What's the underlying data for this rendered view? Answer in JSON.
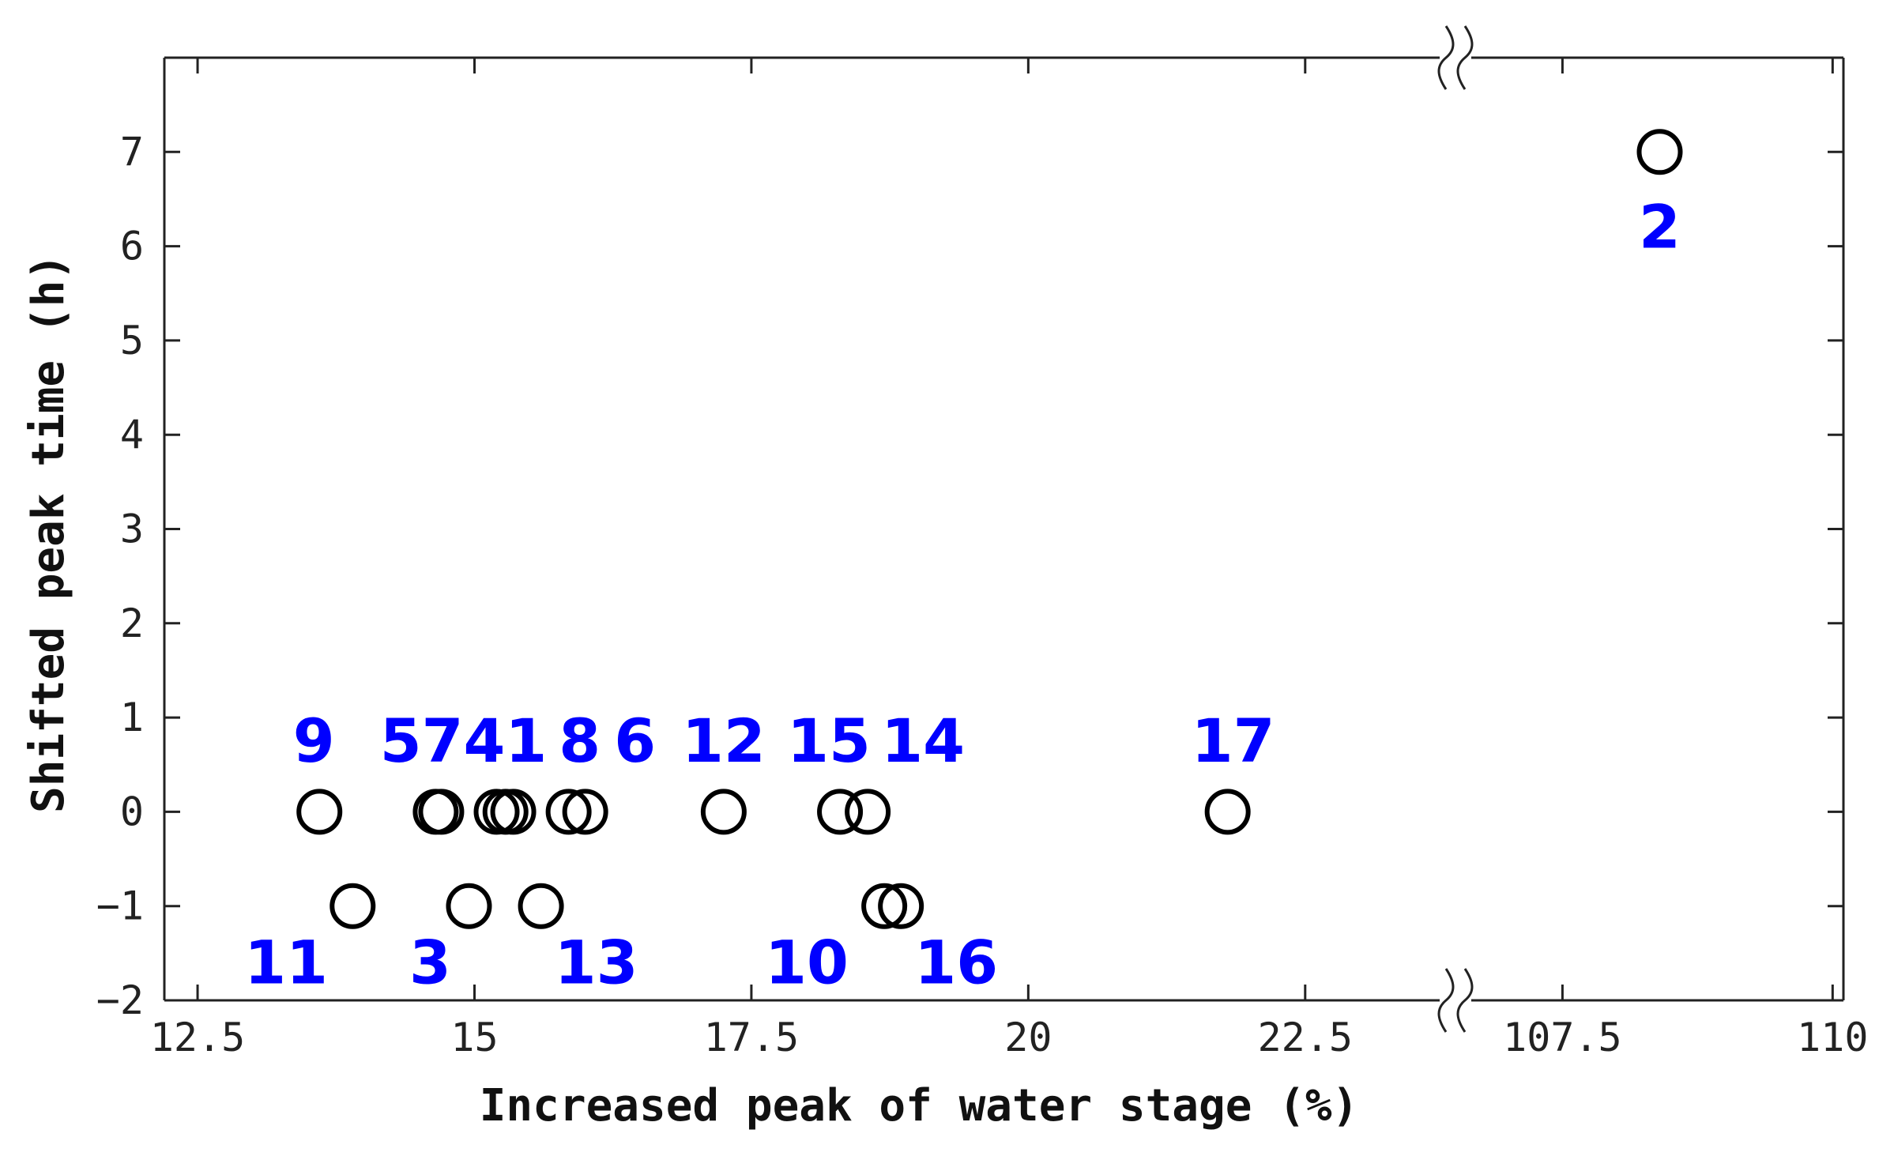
{
  "chart_data": {
    "type": "scatter",
    "title": "",
    "xlabel": "Increased peak of water stage (%)",
    "ylabel": "Shifted peak time (h)",
    "ylim": [
      -2,
      8
    ],
    "xlim_segments": [
      [
        12.2,
        23.7
      ],
      [
        106.7,
        110.1
      ]
    ],
    "axis_break": true,
    "grid": false,
    "legend": "none",
    "xticks": [
      {
        "value": 12.5,
        "label": "12.5"
      },
      {
        "value": 15,
        "label": "15"
      },
      {
        "value": 17.5,
        "label": "17.5"
      },
      {
        "value": 20,
        "label": "20"
      },
      {
        "value": 22.5,
        "label": "22.5"
      },
      {
        "value": 107.5,
        "label": "107.5"
      },
      {
        "value": 110,
        "label": "110"
      }
    ],
    "yticks": [
      {
        "value": -2,
        "label": "−2"
      },
      {
        "value": -1,
        "label": "−1"
      },
      {
        "value": 0,
        "label": "0"
      },
      {
        "value": 1,
        "label": "1"
      },
      {
        "value": 2,
        "label": "2"
      },
      {
        "value": 3,
        "label": "3"
      },
      {
        "value": 4,
        "label": "4"
      },
      {
        "value": 5,
        "label": "5"
      },
      {
        "value": 6,
        "label": "6"
      },
      {
        "value": 7,
        "label": "7"
      }
    ],
    "points": [
      {
        "x": 108.4,
        "y": 7
      },
      {
        "x": 13.6,
        "y": 0
      },
      {
        "x": 14.65,
        "y": 0
      },
      {
        "x": 14.7,
        "y": 0
      },
      {
        "x": 15.2,
        "y": 0
      },
      {
        "x": 15.28,
        "y": 0
      },
      {
        "x": 15.35,
        "y": 0
      },
      {
        "x": 15.85,
        "y": 0
      },
      {
        "x": 16.0,
        "y": 0
      },
      {
        "x": 17.25,
        "y": 0
      },
      {
        "x": 18.3,
        "y": 0
      },
      {
        "x": 18.55,
        "y": 0
      },
      {
        "x": 21.8,
        "y": 0
      },
      {
        "x": 13.9,
        "y": -1
      },
      {
        "x": 14.95,
        "y": -1
      },
      {
        "x": 15.6,
        "y": -1
      },
      {
        "x": 18.7,
        "y": -1
      },
      {
        "x": 18.85,
        "y": -1
      }
    ],
    "annotations": [
      {
        "text": "2",
        "x": 108.4,
        "y": 6.2
      },
      {
        "text": "9",
        "x": 13.55,
        "y": 0.75
      },
      {
        "text": "5741",
        "x": 14.9,
        "y": 0.75
      },
      {
        "text": "8",
        "x": 15.95,
        "y": 0.75
      },
      {
        "text": "6",
        "x": 16.45,
        "y": 0.75
      },
      {
        "text": "12",
        "x": 17.25,
        "y": 0.75
      },
      {
        "text": "15",
        "x": 18.2,
        "y": 0.75
      },
      {
        "text": "14",
        "x": 19.05,
        "y": 0.75
      },
      {
        "text": "17",
        "x": 21.85,
        "y": 0.75
      },
      {
        "text": "11",
        "x": 13.3,
        "y": -1.6
      },
      {
        "text": "3",
        "x": 14.6,
        "y": -1.6
      },
      {
        "text": "13",
        "x": 16.1,
        "y": -1.6
      },
      {
        "text": "10",
        "x": 18.0,
        "y": -1.6
      },
      {
        "text": "16",
        "x": 19.35,
        "y": -1.6
      }
    ],
    "marker_color": "#000000",
    "label_color": "#0000ff"
  }
}
